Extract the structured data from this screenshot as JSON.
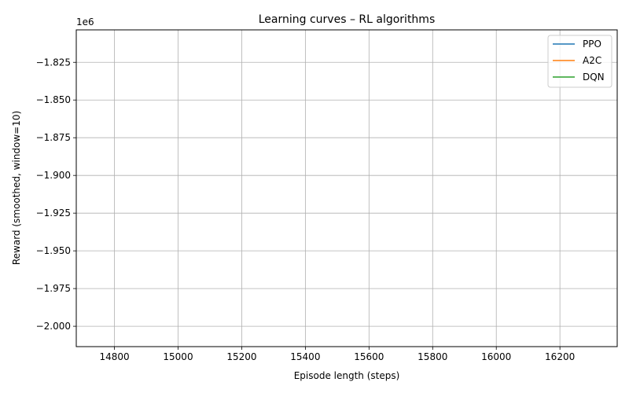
{
  "chart_data": {
    "type": "line",
    "title": "Learning curves – RL algorithms",
    "xlabel": "Episode length (steps)",
    "ylabel": "Reward (smoothed, window=10)",
    "y_offset_label": "1e6",
    "xlim": [
      14680,
      16380
    ],
    "ylim": [
      -2.0135,
      -1.8035
    ],
    "xticks": [
      14800,
      15000,
      15200,
      15400,
      15600,
      15800,
      16000,
      16200
    ],
    "yticks": [
      -1.825,
      -1.85,
      -1.875,
      -1.9,
      -1.925,
      -1.95,
      -1.975,
      -2.0
    ],
    "xtick_labels": [
      "14800",
      "15000",
      "15200",
      "15400",
      "15600",
      "15800",
      "16000",
      "16200"
    ],
    "ytick_labels": [
      "−1.825",
      "−1.850",
      "−1.875",
      "−1.900",
      "−1.925",
      "−1.950",
      "−1.975",
      "−2.000"
    ],
    "grid": true,
    "legend_position": "top-right",
    "series": [
      {
        "name": "PPO",
        "color": "#1f77b4",
        "x": [],
        "y": []
      },
      {
        "name": "A2C",
        "color": "#ff7f0e",
        "x": [],
        "y": []
      },
      {
        "name": "DQN",
        "color": "#2ca02c",
        "x": [],
        "y": []
      }
    ]
  }
}
